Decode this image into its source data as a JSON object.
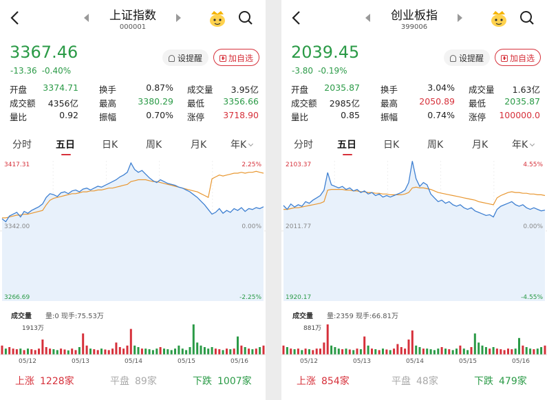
{
  "panels": [
    {
      "title": "上证指数",
      "code": "000001",
      "price": "3367.46",
      "change": "-13.36",
      "change_pct": "-0.40%",
      "remind_label": "设提醒",
      "add_label": "加自选",
      "stats": [
        [
          {
            "label": "开盘",
            "value": "3374.71",
            "color": "green"
          },
          {
            "label": "换手",
            "value": "0.87%",
            "color": "dark"
          },
          {
            "label": "成交量",
            "value": "3.95亿",
            "color": "dark"
          }
        ],
        [
          {
            "label": "成交额",
            "value": "4356亿",
            "color": "dark"
          },
          {
            "label": "最高",
            "value": "3380.29",
            "color": "green"
          },
          {
            "label": "最低",
            "value": "3356.66",
            "color": "green"
          }
        ],
        [
          {
            "label": "量比",
            "value": "0.92",
            "color": "dark"
          },
          {
            "label": "振幅",
            "value": "0.70%",
            "color": "dark"
          },
          {
            "label": "涨停",
            "value": "3718.90",
            "color": "red"
          }
        ]
      ],
      "tabs": [
        "分时",
        "五日",
        "日K",
        "周K",
        "月K",
        "年K"
      ],
      "active_tab": 1,
      "volume_label": "成交量",
      "volume_info": "量:0 现手:75.53万",
      "breadth": {
        "up_label": "上涨",
        "up": "1228家",
        "flat_label": "平盘",
        "flat": "89家",
        "down_label": "下跌",
        "down": "1007家"
      },
      "chart_data": {
        "type": "line",
        "y_labels": {
          "top": "3417.31",
          "mid": "3342.00",
          "bottom": "3266.69"
        },
        "pct_labels": {
          "top": "2.25%",
          "mid": "0.00%",
          "bottom": "-2.25%"
        },
        "ylim": [
          3266.69,
          3417.31
        ],
        "vol_max_label": "1913万",
        "x_labels": [
          "05/12",
          "05/13",
          "05/14",
          "05/15",
          "05/16"
        ],
        "price": [
          3355,
          3352,
          3358,
          3360,
          3362,
          3357,
          3363,
          3361,
          3364,
          3366,
          3368,
          3371,
          3378,
          3382,
          3381,
          3379,
          3383,
          3384,
          3382,
          3385,
          3386,
          3384,
          3387,
          3388,
          3386,
          3388,
          3390,
          3389,
          3391,
          3393,
          3395,
          3397,
          3400,
          3402,
          3405,
          3415,
          3408,
          3405,
          3407,
          3403,
          3399,
          3396,
          3394,
          3397,
          3395,
          3393,
          3392,
          3391,
          3389,
          3388,
          3386,
          3384,
          3381,
          3378,
          3374,
          3370,
          3365,
          3360,
          3362,
          3366,
          3361,
          3364,
          3362,
          3366,
          3364,
          3367,
          3363,
          3366,
          3365,
          3367,
          3366,
          3368
        ],
        "avg": [
          3356,
          3356,
          3357,
          3358,
          3359,
          3359,
          3360,
          3360,
          3361,
          3362,
          3363,
          3364,
          3370,
          3375,
          3377,
          3378,
          3379,
          3380,
          3381,
          3382,
          3382,
          3383,
          3384,
          3384,
          3385,
          3385,
          3386,
          3386,
          3387,
          3388,
          3388,
          3389,
          3390,
          3391,
          3392,
          3395,
          3396,
          3397,
          3397,
          3397,
          3396,
          3395,
          3395,
          3394,
          3393,
          3392,
          3391,
          3390,
          3389,
          3388,
          3387,
          3386,
          3385,
          3384,
          3382,
          3380,
          3378,
          3398,
          3400,
          3402,
          3401,
          3402,
          3403,
          3404,
          3404,
          3405,
          3404,
          3405,
          3405,
          3406,
          3405,
          3404
        ],
        "volume": [
          0.3,
          0.2,
          0.25,
          0.2,
          0.18,
          0.2,
          0.15,
          0.2,
          0.18,
          0.15,
          0.2,
          0.5,
          0.25,
          0.2,
          0.18,
          0.15,
          0.2,
          0.17,
          0.14,
          0.2,
          0.15,
          0.25,
          0.7,
          0.3,
          0.2,
          0.18,
          0.15,
          0.2,
          0.17,
          0.15,
          0.2,
          0.4,
          0.25,
          0.2,
          0.3,
          0.85,
          0.3,
          0.25,
          0.2,
          0.2,
          0.18,
          0.15,
          0.2,
          0.25,
          0.2,
          0.18,
          0.15,
          0.2,
          0.3,
          0.2,
          0.15,
          0.25,
          1.0,
          0.4,
          0.3,
          0.25,
          0.2,
          0.25,
          0.2,
          0.18,
          0.15,
          0.2,
          0.18,
          0.2,
          0.6,
          0.3,
          0.25,
          0.2,
          0.18,
          0.2,
          0.25,
          0.3
        ]
      }
    },
    {
      "title": "创业板指",
      "code": "399006",
      "price": "2039.45",
      "change": "-3.80",
      "change_pct": "-0.19%",
      "remind_label": "设提醒",
      "add_label": "加自选",
      "stats": [
        [
          {
            "label": "开盘",
            "value": "2035.87",
            "color": "green"
          },
          {
            "label": "换手",
            "value": "3.04%",
            "color": "dark"
          },
          {
            "label": "成交量",
            "value": "1.63亿",
            "color": "dark"
          }
        ],
        [
          {
            "label": "成交额",
            "value": "2985亿",
            "color": "dark"
          },
          {
            "label": "最高",
            "value": "2050.89",
            "color": "red"
          },
          {
            "label": "最低",
            "value": "2035.87",
            "color": "green"
          }
        ],
        [
          {
            "label": "量比",
            "value": "0.85",
            "color": "dark"
          },
          {
            "label": "振幅",
            "value": "0.74%",
            "color": "dark"
          },
          {
            "label": "涨停",
            "value": "100000.0",
            "color": "red"
          }
        ]
      ],
      "tabs": [
        "分时",
        "五日",
        "日K",
        "周K",
        "月K",
        "年K"
      ],
      "active_tab": 1,
      "volume_label": "成交量",
      "volume_info": "量:2359 现手:66.81万",
      "breadth": {
        "up_label": "上涨",
        "up": "854家",
        "flat_label": "平盘",
        "flat": "48家",
        "down_label": "下跌",
        "down": "479家"
      },
      "chart_data": {
        "type": "line",
        "y_labels": {
          "top": "2103.37",
          "mid": "2011.77",
          "bottom": "1920.17"
        },
        "pct_labels": {
          "top": "4.55%",
          "mid": "0.00%",
          "bottom": "-4.55%"
        },
        "ylim": [
          1920.17,
          2103.37
        ],
        "vol_max_label": "881万",
        "x_labels": [
          "05/12",
          "05/13",
          "05/14",
          "05/15",
          "05/16"
        ],
        "price": [
          2045,
          2040,
          2047,
          2043,
          2046,
          2044,
          2050,
          2048,
          2052,
          2055,
          2058,
          2065,
          2088,
          2072,
          2070,
          2068,
          2070,
          2066,
          2068,
          2064,
          2066,
          2062,
          2064,
          2060,
          2062,
          2058,
          2060,
          2056,
          2058,
          2056,
          2058,
          2060,
          2062,
          2065,
          2075,
          2103,
          2080,
          2070,
          2075,
          2072,
          2060,
          2055,
          2050,
          2052,
          2048,
          2050,
          2046,
          2044,
          2046,
          2042,
          2040,
          2042,
          2038,
          2036,
          2034,
          2032,
          2033,
          2030,
          2040,
          2044,
          2046,
          2048,
          2050,
          2046,
          2044,
          2046,
          2042,
          2040,
          2042,
          2040,
          2038,
          2039
        ],
        "avg": [
          2040,
          2040,
          2041,
          2042,
          2042,
          2043,
          2044,
          2045,
          2046,
          2047,
          2048,
          2050,
          2065,
          2066,
          2066,
          2066,
          2066,
          2065,
          2065,
          2064,
          2064,
          2063,
          2063,
          2062,
          2062,
          2061,
          2061,
          2060,
          2060,
          2059,
          2059,
          2059,
          2059,
          2060,
          2062,
          2068,
          2069,
          2068,
          2068,
          2067,
          2066,
          2064,
          2062,
          2061,
          2060,
          2059,
          2058,
          2057,
          2056,
          2055,
          2054,
          2053,
          2052,
          2050,
          2049,
          2048,
          2047,
          2046,
          2055,
          2058,
          2060,
          2062,
          2063,
          2062,
          2062,
          2061,
          2061,
          2060,
          2060,
          2059,
          2059,
          2058
        ],
        "volume": [
          0.3,
          0.25,
          0.2,
          0.18,
          0.2,
          0.15,
          0.2,
          0.18,
          0.15,
          0.2,
          0.2,
          0.4,
          1.0,
          0.3,
          0.25,
          0.2,
          0.18,
          0.2,
          0.17,
          0.15,
          0.2,
          0.18,
          0.6,
          0.3,
          0.2,
          0.18,
          0.15,
          0.2,
          0.17,
          0.15,
          0.2,
          0.35,
          0.25,
          0.2,
          0.5,
          0.8,
          0.3,
          0.25,
          0.2,
          0.2,
          0.18,
          0.15,
          0.2,
          0.25,
          0.2,
          0.18,
          0.15,
          0.2,
          0.3,
          0.2,
          0.15,
          0.25,
          0.7,
          0.4,
          0.3,
          0.25,
          0.2,
          0.25,
          0.2,
          0.18,
          0.15,
          0.2,
          0.18,
          0.2,
          0.55,
          0.3,
          0.25,
          0.2,
          0.18,
          0.2,
          0.25,
          0.3
        ]
      }
    }
  ]
}
